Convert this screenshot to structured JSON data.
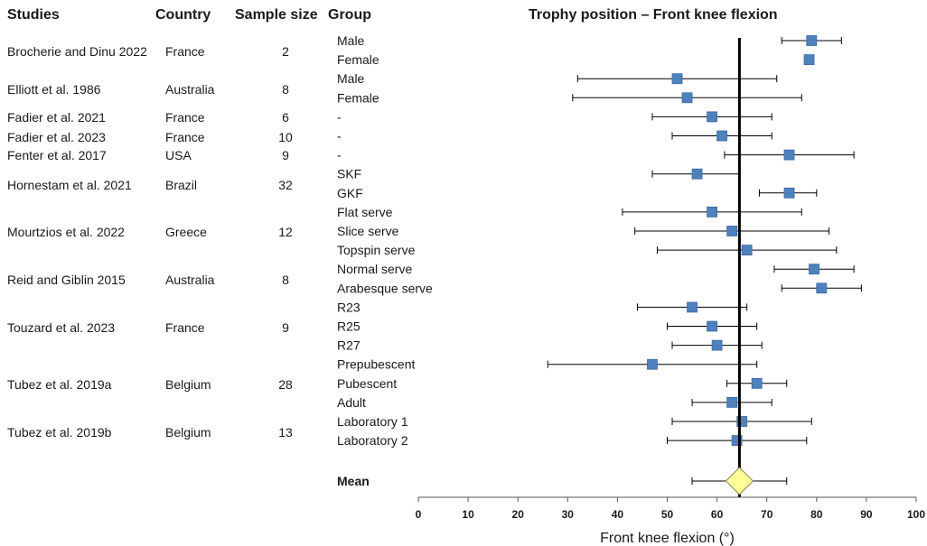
{
  "headers": {
    "studies": "Studies",
    "country": "Country",
    "sample_size": "Sample size",
    "group": "Group",
    "plot_title": "Trophy position – Front knee flexion"
  },
  "studies": [
    {
      "name": "Brocherie and Dinu 2022",
      "country": "France",
      "n": "2"
    },
    {
      "name": "Elliott et al. 1986",
      "country": "Australia",
      "n": "8"
    },
    {
      "name": "Fadier et al. 2021",
      "country": "France",
      "n": "6"
    },
    {
      "name": "Fadier et al. 2023",
      "country": "France",
      "n": "10"
    },
    {
      "name": "Fenter et al. 2017",
      "country": "USA",
      "n": "9"
    },
    {
      "name": "Hornestam et al. 2021",
      "country": "Brazil",
      "n": "32"
    },
    {
      "name": "Mourtzios et al. 2022",
      "country": "Greece",
      "n": "12"
    },
    {
      "name": "Reid and Giblin 2015",
      "country": "Australia",
      "n": "8"
    },
    {
      "name": "Touzard et al. 2023",
      "country": "France",
      "n": "9"
    },
    {
      "name": "Tubez et al. 2019a",
      "country": "Belgium",
      "n": "28"
    },
    {
      "name": "Tubez et al. 2019b",
      "country": "Belgium",
      "n": "13"
    }
  ],
  "colors": {
    "marker": "#4f81bd",
    "marker_edge": "#3a6aa3",
    "diamond": "#ffff99",
    "diamond_edge": "#8a8a50",
    "line": "#000000"
  },
  "chart_data": {
    "type": "forest",
    "title": "Trophy position – Front knee flexion",
    "xlabel": "Front knee flexion (°)",
    "xlim": [
      0,
      100
    ],
    "xticks": [
      0,
      10,
      20,
      30,
      40,
      50,
      60,
      70,
      80,
      90,
      100
    ],
    "reference_line": 64.5,
    "groups": [
      {
        "label": "Male",
        "mean": 79,
        "lo": 73,
        "hi": 85
      },
      {
        "label": "Female",
        "mean": 78.5,
        "lo": 78.5,
        "hi": 78.5
      },
      {
        "label": "Male",
        "mean": 52,
        "lo": 32,
        "hi": 72
      },
      {
        "label": "Female",
        "mean": 54,
        "lo": 31,
        "hi": 77
      },
      {
        "label": "-",
        "mean": 59,
        "lo": 47,
        "hi": 71
      },
      {
        "label": "-",
        "mean": 61,
        "lo": 51,
        "hi": 71
      },
      {
        "label": "-",
        "mean": 74.5,
        "lo": 61.5,
        "hi": 87.5
      },
      {
        "label": "SKF",
        "mean": 56,
        "lo": 47,
        "hi": 64.5
      },
      {
        "label": "GKF",
        "mean": 74.5,
        "lo": 68.5,
        "hi": 80
      },
      {
        "label": "Flat serve",
        "mean": 59,
        "lo": 41,
        "hi": 77
      },
      {
        "label": "Slice serve",
        "mean": 63,
        "lo": 43.5,
        "hi": 82.5
      },
      {
        "label": "Topspin serve",
        "mean": 66,
        "lo": 48,
        "hi": 84
      },
      {
        "label": "Normal serve",
        "mean": 79.5,
        "lo": 71.5,
        "hi": 87.5
      },
      {
        "label": "Arabesque serve",
        "mean": 81,
        "lo": 73,
        "hi": 89
      },
      {
        "label": "R23",
        "mean": 55,
        "lo": 44,
        "hi": 66
      },
      {
        "label": "R25",
        "mean": 59,
        "lo": 50,
        "hi": 68
      },
      {
        "label": "R27",
        "mean": 60,
        "lo": 51,
        "hi": 69
      },
      {
        "label": "Prepubescent",
        "mean": 47,
        "lo": 26,
        "hi": 68
      },
      {
        "label": "Pubescent",
        "mean": 68,
        "lo": 62,
        "hi": 74
      },
      {
        "label": "Adult",
        "mean": 63,
        "lo": 55,
        "hi": 71
      },
      {
        "label": "Laboratory 1",
        "mean": 65,
        "lo": 51,
        "hi": 79
      },
      {
        "label": "Laboratory 2",
        "mean": 64,
        "lo": 50,
        "hi": 78
      }
    ],
    "summary": {
      "label": "Mean",
      "mean": 64.5,
      "lo": 55,
      "hi": 74
    }
  }
}
